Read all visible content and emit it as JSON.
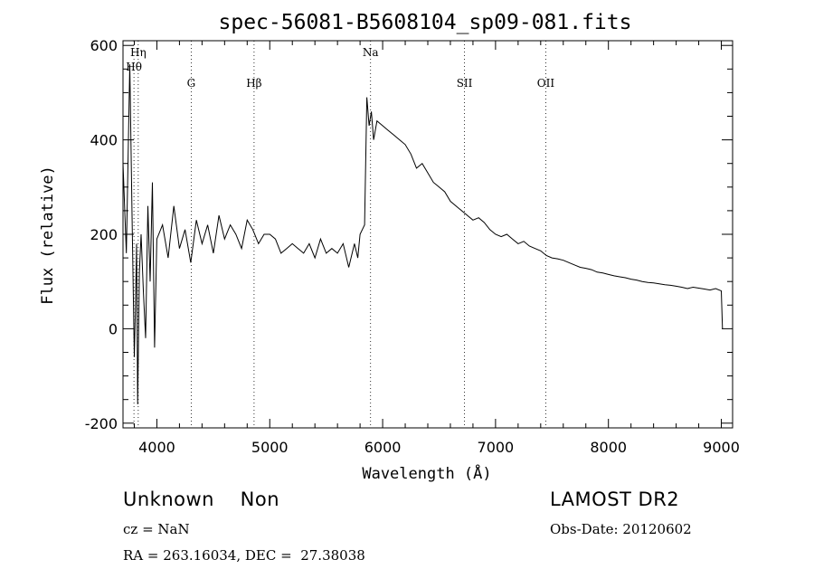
{
  "chart_data": {
    "type": "line",
    "title": "spec-56081-B5608104_sp09-081.fits",
    "xlabel": "Wavelength (Å)",
    "ylabel": "Flux (relative)",
    "xlim": [
      3700,
      9100
    ],
    "ylim": [
      -210,
      610
    ],
    "xticks": [
      4000,
      5000,
      6000,
      7000,
      8000,
      9000
    ],
    "yticks": [
      -200,
      0,
      200,
      400,
      600
    ],
    "grid": false,
    "lines": [
      {
        "name": "Hη",
        "x": 3835,
        "row": 0
      },
      {
        "name": "Hθ",
        "x": 3797,
        "row": 1
      },
      {
        "name": "G",
        "x": 4304,
        "row": 2
      },
      {
        "name": "Hβ",
        "x": 4861,
        "row": 2
      },
      {
        "name": "Na",
        "x": 5893,
        "row": 0
      },
      {
        "name": "SII",
        "x": 6725,
        "row": 2
      },
      {
        "name": "OII",
        "x": 7445,
        "row": 2
      }
    ],
    "series": [
      {
        "x": [
          3700,
          3730,
          3760,
          3780,
          3800,
          3810,
          3820,
          3830,
          3845,
          3860,
          3880,
          3900,
          3920,
          3940,
          3960,
          3980,
          4000,
          4050,
          4100,
          4150,
          4200,
          4250,
          4300,
          4350,
          4400,
          4450,
          4500,
          4550,
          4600,
          4650,
          4700,
          4750,
          4800,
          4850,
          4900,
          4950,
          5000,
          5050,
          5100,
          5150,
          5200,
          5250,
          5300,
          5350,
          5400,
          5450,
          5500,
          5550,
          5600,
          5650,
          5700,
          5750,
          5780,
          5800,
          5820,
          5840,
          5860,
          5880,
          5900,
          5920,
          5950,
          6000,
          6050,
          6100,
          6150,
          6200,
          6250,
          6300,
          6350,
          6400,
          6450,
          6500,
          6550,
          6600,
          6650,
          6700,
          6750,
          6800,
          6850,
          6900,
          6950,
          7000,
          7050,
          7100,
          7150,
          7200,
          7250,
          7300,
          7350,
          7400,
          7450,
          7500,
          7550,
          7600,
          7650,
          7700,
          7750,
          7800,
          7850,
          7900,
          7950,
          8000,
          8050,
          8100,
          8150,
          8200,
          8250,
          8300,
          8350,
          8400,
          8450,
          8500,
          8550,
          8600,
          8650,
          8700,
          8750,
          8800,
          8850,
          8900,
          8950,
          9000,
          9010
        ],
        "y": [
          350,
          160,
          560,
          240,
          -60,
          40,
          180,
          -160,
          120,
          200,
          80,
          -20,
          260,
          100,
          310,
          -40,
          190,
          220,
          150,
          260,
          170,
          210,
          140,
          230,
          180,
          220,
          160,
          240,
          190,
          220,
          200,
          170,
          230,
          210,
          180,
          200,
          200,
          190,
          160,
          170,
          180,
          170,
          160,
          180,
          150,
          190,
          160,
          170,
          160,
          180,
          130,
          180,
          150,
          200,
          210,
          220,
          490,
          430,
          460,
          400,
          440,
          430,
          420,
          410,
          400,
          390,
          370,
          340,
          350,
          330,
          310,
          300,
          290,
          270,
          260,
          250,
          240,
          230,
          235,
          225,
          210,
          200,
          195,
          200,
          190,
          180,
          185,
          175,
          170,
          165,
          155,
          150,
          148,
          145,
          140,
          135,
          130,
          128,
          125,
          120,
          118,
          115,
          112,
          110,
          108,
          105,
          103,
          100,
          98,
          97,
          95,
          93,
          92,
          90,
          88,
          85,
          88,
          86,
          84,
          82,
          85,
          80,
          0
        ]
      }
    ]
  },
  "info": {
    "left_line1": "Unknown    Non",
    "cz": "cz = NaN",
    "radec": "RA = 263.16034, DEC =  27.38038",
    "right_line1": "LAMOST DR2",
    "obs_date": "Obs-Date: 20120602"
  }
}
